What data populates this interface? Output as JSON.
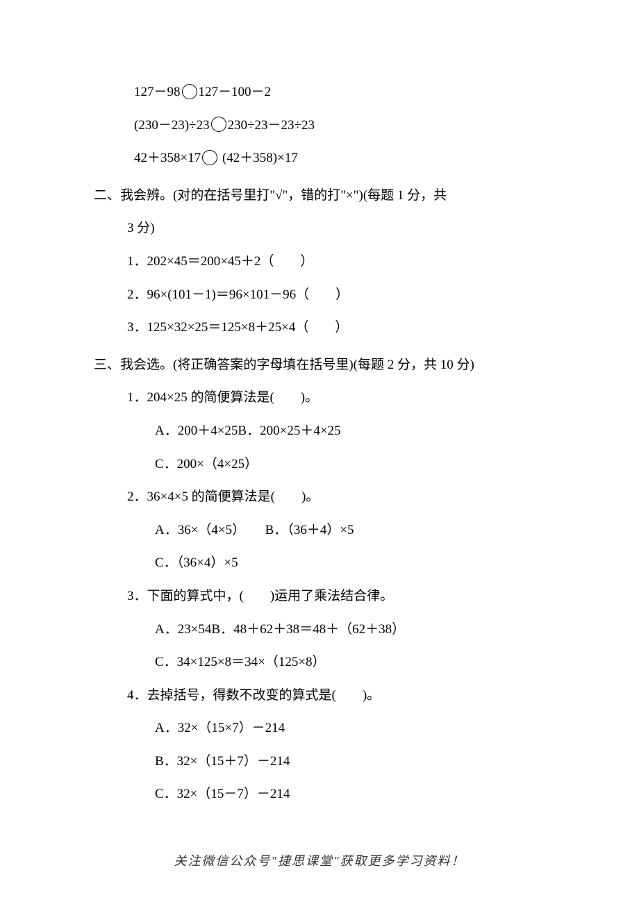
{
  "topExpressions": {
    "line1_left": "127－98",
    "line1_right": "127－100－2",
    "line2_left": "(230－23)÷23",
    "line2_right": "230÷23－23÷23",
    "line3_left": "42＋358×17",
    "line3_right": " (42＋358)×17"
  },
  "section2": {
    "header": "二、我会辨。(对的在括号里打\"√\"，错的打\"×\")(每题 1 分，共",
    "headerLine2": "3 分)",
    "q1": "1．202×45＝200×45＋2（　　）",
    "q2": "2．96×(101－1)＝96×101－96（　　）",
    "q3": "3．125×32×25＝125×8＋25×4（　　）"
  },
  "section3": {
    "header": "三、我会选。(将正确答案的字母填在括号里)(每题 2 分，共 10 分)",
    "q1": {
      "text": "1．204×25 的简便算法是(　　)。",
      "optA": "A．200＋4×25B．200×25＋4×25",
      "optC": "C．200×（4×25）"
    },
    "q2": {
      "text": "2．36×4×5 的简便算法是(　　)。",
      "optAB": "A．36×（4×5）　　B．（36＋4）×5",
      "optC": "C．（36×4）×5"
    },
    "q3": {
      "text": "3．下面的算式中，(　　)运用了乘法结合律。",
      "optAB": "A．23×54B．48＋62＋38＝48＋（62＋38）",
      "optC": "C．34×125×8＝34×（125×8）"
    },
    "q4": {
      "text": "4．去掉括号，得数不改变的算式是(　　)。",
      "optA": "A．32×（15×7）－214",
      "optB": "B．32×（15＋7）－214",
      "optC": "C．32×（15－7）－214"
    }
  },
  "footer": "关注微信公众号\"捷思课堂\"获取更多学习资料！"
}
